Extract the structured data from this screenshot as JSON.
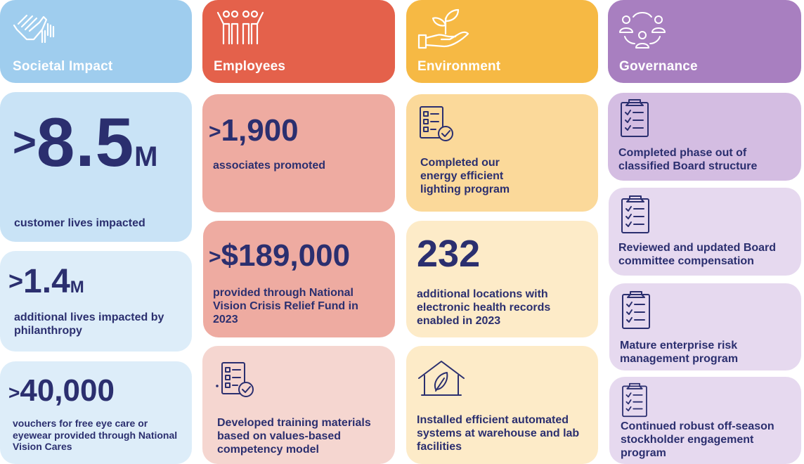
{
  "columns": {
    "societal": {
      "title": "Societal Impact",
      "header_color": "#9fcdee",
      "stat1": {
        "prefix": ">",
        "number": "8.5",
        "suffix": "M",
        "text": "customer lives impacted"
      },
      "stat2": {
        "prefix": ">",
        "number": "1.4",
        "suffix": "M",
        "text": "additional lives impacted by philanthropy"
      },
      "stat3": {
        "prefix": ">",
        "number": "40,000",
        "text": "vouchers for free eye care or eyewear provided through National Vision Cares"
      }
    },
    "employees": {
      "title": "Employees",
      "header_color": "#e4614b",
      "stat1": {
        "prefix": ">",
        "number": "1,900",
        "text": "associates promoted"
      },
      "stat2": {
        "prefix": ">",
        "number": "$189,000",
        "text": "provided through National Vision Crisis Relief Fund in 2023"
      },
      "item3": {
        "text": "Developed training materials based on values-based competency model",
        "icon": "checklist-icon"
      }
    },
    "environment": {
      "title": "Environment",
      "header_color": "#f6b944",
      "item1": {
        "text": "Completed our energy efficient lighting program",
        "icon": "checklist-icon"
      },
      "stat2": {
        "number": "232",
        "text": "additional locations with electronic health records enabled in 2023"
      },
      "item3": {
        "text": "Installed efficient automated systems at warehouse and lab facilities",
        "icon": "eco-house-icon"
      }
    },
    "governance": {
      "title": "Governance",
      "header_color": "#a87fc0",
      "items": [
        {
          "text": "Completed phase out of classified Board structure",
          "icon": "clipboard-check-icon"
        },
        {
          "text": "Reviewed and updated Board committee compensation",
          "icon": "clipboard-check-icon"
        },
        {
          "text": "Mature enterprise risk management program",
          "icon": "clipboard-check-icon"
        },
        {
          "text": "Continued robust off-season stockholder engagement program",
          "icon": "clipboard-check-icon"
        }
      ]
    }
  },
  "colors": {
    "text_navy": "#2b2f6f",
    "societal_light": "#c9e3f6",
    "societal_lighter": "#ddedf9",
    "employees_mid": "#eeaba1",
    "employees_light": "#f5d6d0",
    "environment_mid": "#fbd99a",
    "environment_light": "#fdebc8",
    "governance_mid": "#d4bde2",
    "governance_light": "#e6d9ef"
  }
}
